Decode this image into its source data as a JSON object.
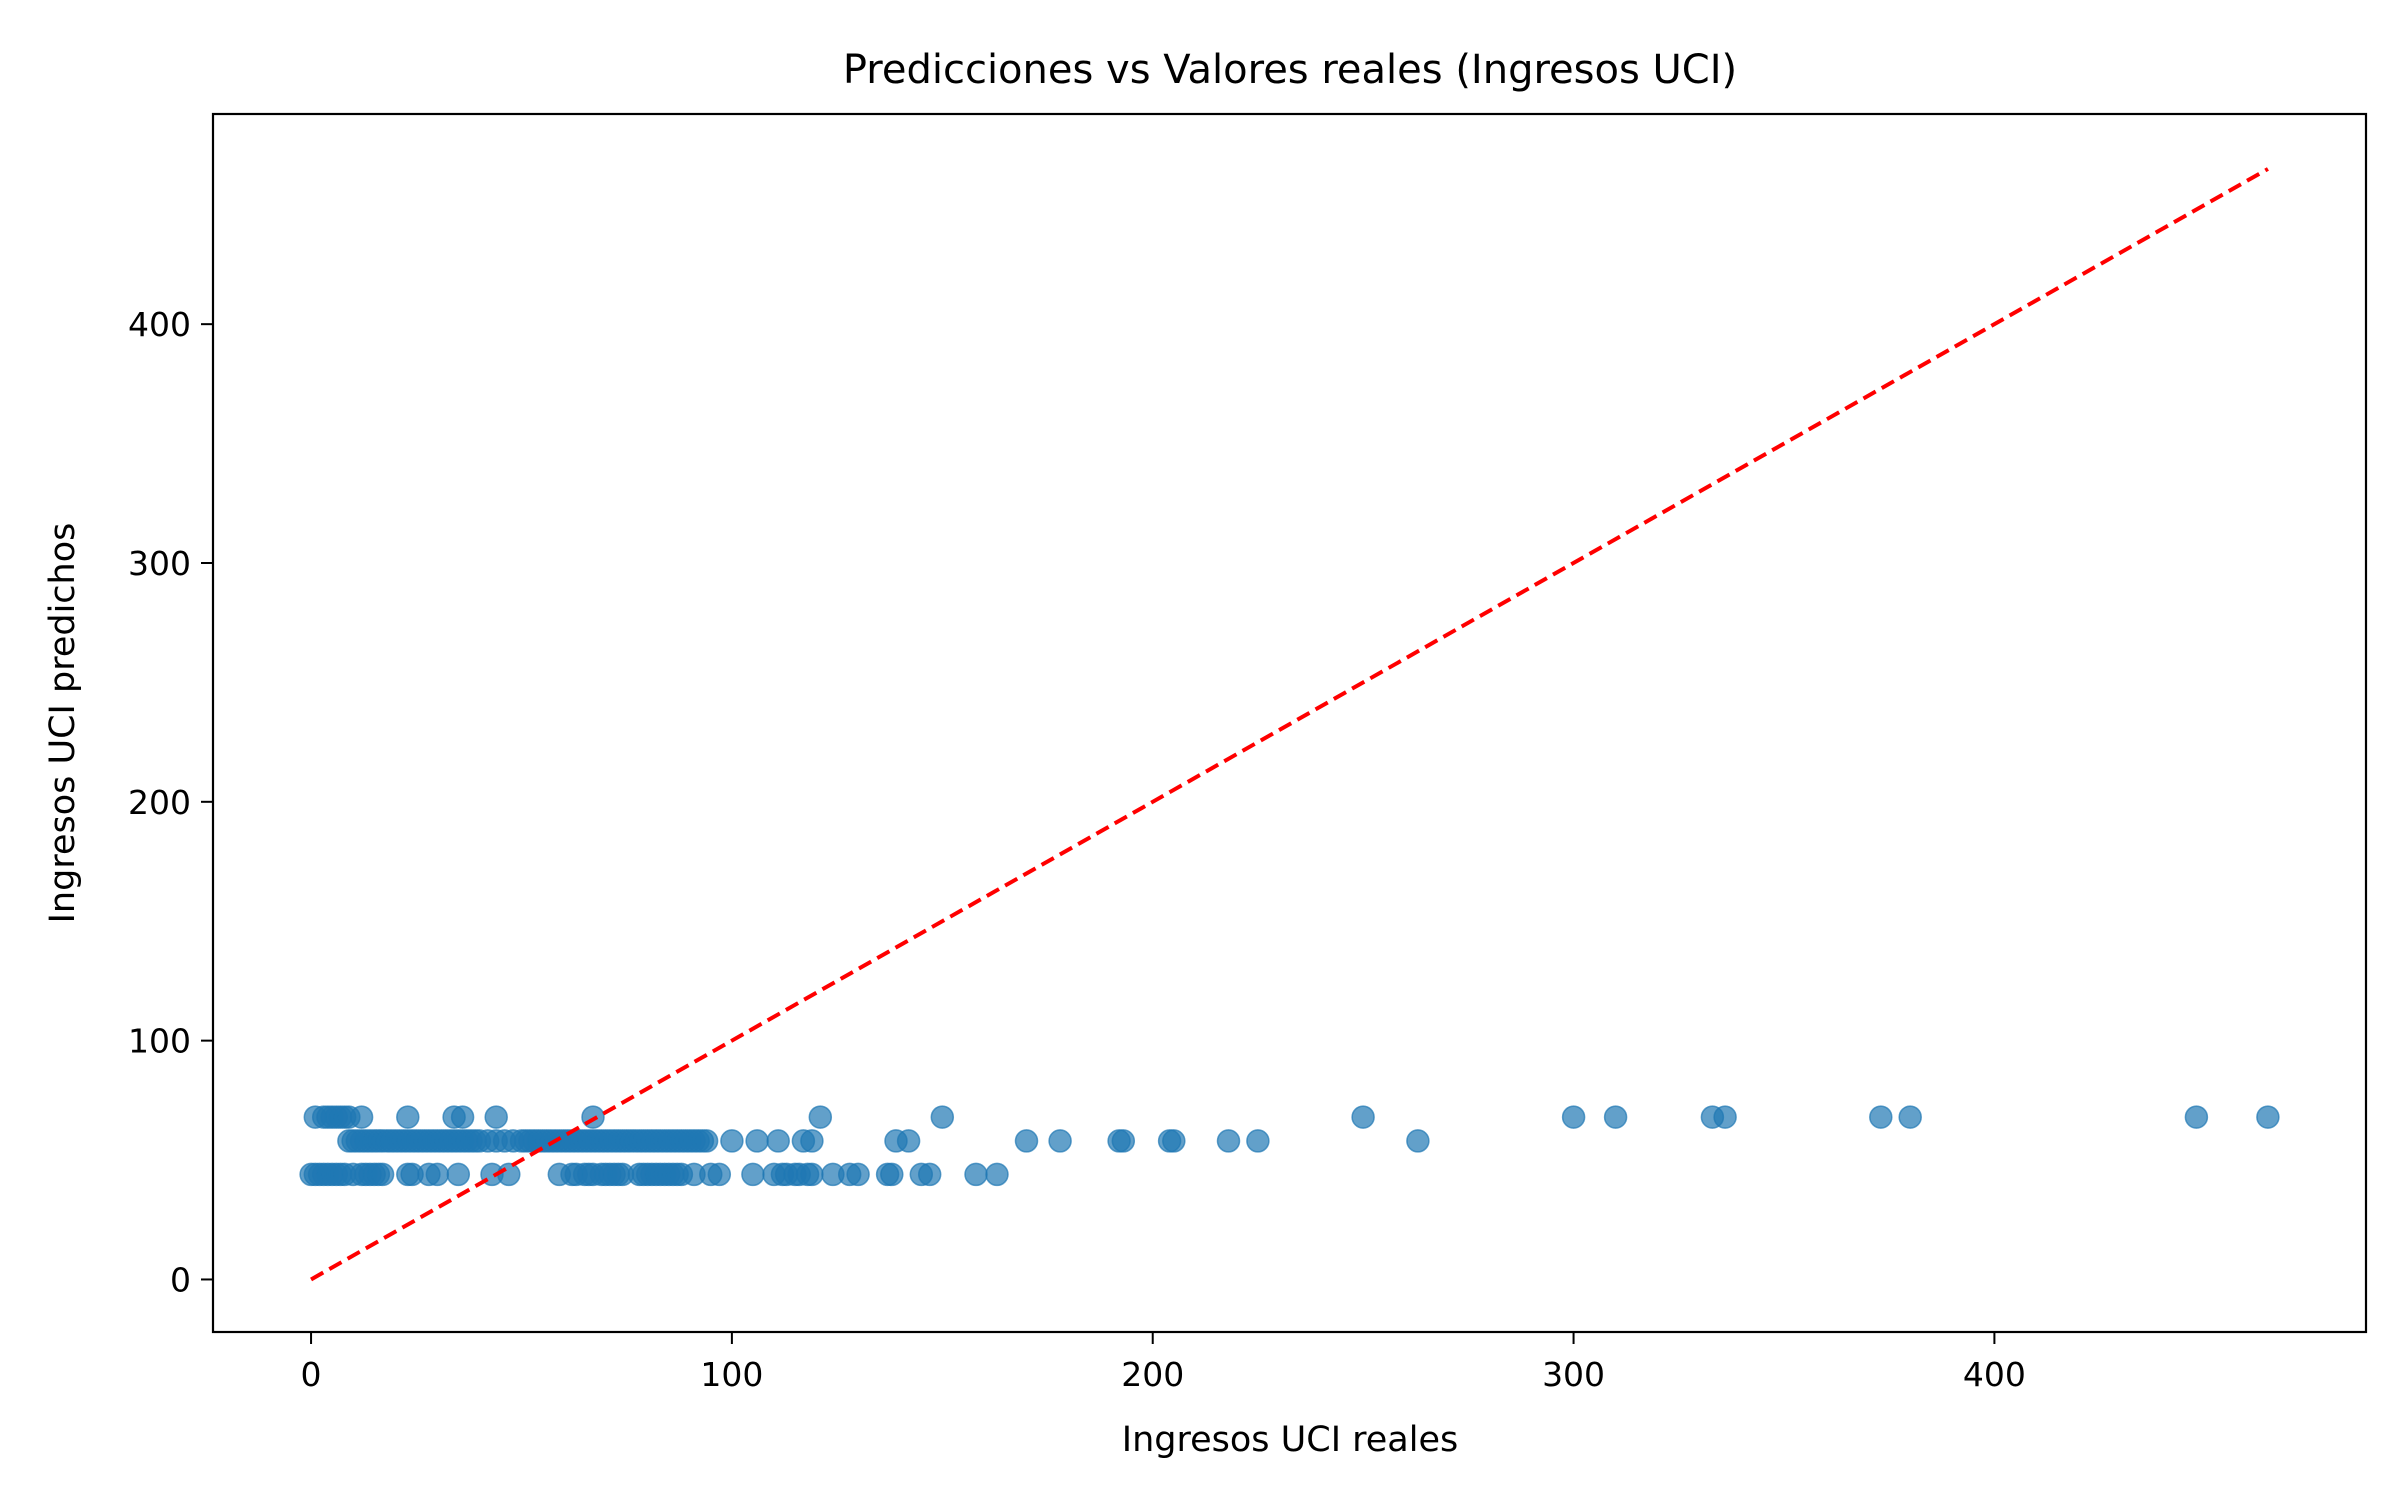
{
  "chart_data": {
    "type": "scatter",
    "title": "Predicciones vs Valores reales (Ingresos UCI)",
    "xlabel": "Ingresos UCI reales",
    "ylabel": "Ingresos UCI predichos",
    "xlim": [
      -23.3,
      488.3
    ],
    "ylim": [
      -22,
      488
    ],
    "xticks": [
      0,
      100,
      200,
      300,
      400
    ],
    "yticks": [
      0,
      100,
      200,
      300,
      400
    ],
    "grid": false,
    "colors": {
      "points": "#1f77b4",
      "reference_line": "#ff0000"
    },
    "reference_line": {
      "style": "dashed",
      "x": [
        0,
        465
      ],
      "y": [
        0,
        465
      ]
    },
    "points": [
      [
        0,
        44
      ],
      [
        1,
        44
      ],
      [
        2,
        44
      ],
      [
        3,
        44
      ],
      [
        4,
        44
      ],
      [
        5,
        44
      ],
      [
        6,
        44
      ],
      [
        7,
        44
      ],
      [
        8,
        44
      ],
      [
        10,
        44
      ],
      [
        12,
        44
      ],
      [
        13,
        44
      ],
      [
        14,
        44
      ],
      [
        15,
        44
      ],
      [
        16,
        44
      ],
      [
        17,
        44
      ],
      [
        23,
        44
      ],
      [
        24,
        44
      ],
      [
        28,
        44
      ],
      [
        30,
        44
      ],
      [
        35,
        44
      ],
      [
        43,
        44
      ],
      [
        47,
        44
      ],
      [
        59,
        44
      ],
      [
        62,
        44
      ],
      [
        63,
        44
      ],
      [
        65,
        44
      ],
      [
        66,
        44
      ],
      [
        67,
        44
      ],
      [
        69,
        44
      ],
      [
        70,
        44
      ],
      [
        71,
        44
      ],
      [
        72,
        44
      ],
      [
        73,
        44
      ],
      [
        74,
        44
      ],
      [
        78,
        44
      ],
      [
        79,
        44
      ],
      [
        80,
        44
      ],
      [
        81,
        44
      ],
      [
        82,
        44
      ],
      [
        83,
        44
      ],
      [
        84,
        44
      ],
      [
        85,
        44
      ],
      [
        86,
        44
      ],
      [
        87,
        44
      ],
      [
        88,
        44
      ],
      [
        91,
        44
      ],
      [
        95,
        44
      ],
      [
        97,
        44
      ],
      [
        105,
        44
      ],
      [
        110,
        44
      ],
      [
        112,
        44
      ],
      [
        113,
        44
      ],
      [
        115,
        44
      ],
      [
        116,
        44
      ],
      [
        118,
        44
      ],
      [
        119,
        44
      ],
      [
        124,
        44
      ],
      [
        128,
        44
      ],
      [
        130,
        44
      ],
      [
        137,
        44
      ],
      [
        138,
        44
      ],
      [
        145,
        44
      ],
      [
        147,
        44
      ],
      [
        158,
        44
      ],
      [
        163,
        44
      ],
      [
        9,
        58
      ],
      [
        10,
        58
      ],
      [
        11,
        58
      ],
      [
        12,
        58
      ],
      [
        13,
        58
      ],
      [
        14,
        58
      ],
      [
        15,
        58
      ],
      [
        16,
        58
      ],
      [
        17,
        58
      ],
      [
        18,
        58
      ],
      [
        19,
        58
      ],
      [
        20,
        58
      ],
      [
        21,
        58
      ],
      [
        22,
        58
      ],
      [
        23,
        58
      ],
      [
        24,
        58
      ],
      [
        25,
        58
      ],
      [
        26,
        58
      ],
      [
        27,
        58
      ],
      [
        28,
        58
      ],
      [
        29,
        58
      ],
      [
        30,
        58
      ],
      [
        31,
        58
      ],
      [
        32,
        58
      ],
      [
        33,
        58
      ],
      [
        34,
        58
      ],
      [
        35,
        58
      ],
      [
        36,
        58
      ],
      [
        37,
        58
      ],
      [
        38,
        58
      ],
      [
        39,
        58
      ],
      [
        40,
        58
      ],
      [
        42,
        58
      ],
      [
        44,
        58
      ],
      [
        46,
        58
      ],
      [
        48,
        58
      ],
      [
        50,
        58
      ],
      [
        51,
        58
      ],
      [
        52,
        58
      ],
      [
        53,
        58
      ],
      [
        54,
        58
      ],
      [
        55,
        58
      ],
      [
        56,
        58
      ],
      [
        57,
        58
      ],
      [
        58,
        58
      ],
      [
        59,
        58
      ],
      [
        60,
        58
      ],
      [
        61,
        58
      ],
      [
        62,
        58
      ],
      [
        63,
        58
      ],
      [
        64,
        58
      ],
      [
        65,
        58
      ],
      [
        66,
        58
      ],
      [
        67,
        58
      ],
      [
        68,
        58
      ],
      [
        69,
        58
      ],
      [
        70,
        58
      ],
      [
        71,
        58
      ],
      [
        72,
        58
      ],
      [
        73,
        58
      ],
      [
        74,
        58
      ],
      [
        75,
        58
      ],
      [
        76,
        58
      ],
      [
        77,
        58
      ],
      [
        78,
        58
      ],
      [
        79,
        58
      ],
      [
        80,
        58
      ],
      [
        81,
        58
      ],
      [
        82,
        58
      ],
      [
        83,
        58
      ],
      [
        84,
        58
      ],
      [
        85,
        58
      ],
      [
        86,
        58
      ],
      [
        87,
        58
      ],
      [
        88,
        58
      ],
      [
        89,
        58
      ],
      [
        90,
        58
      ],
      [
        91,
        58
      ],
      [
        92,
        58
      ],
      [
        93,
        58
      ],
      [
        94,
        58
      ],
      [
        100,
        58
      ],
      [
        106,
        58
      ],
      [
        111,
        58
      ],
      [
        117,
        58
      ],
      [
        119,
        58
      ],
      [
        139,
        58
      ],
      [
        142,
        58
      ],
      [
        170,
        58
      ],
      [
        178,
        58
      ],
      [
        192,
        58
      ],
      [
        193,
        58
      ],
      [
        204,
        58
      ],
      [
        205,
        58
      ],
      [
        218,
        58
      ],
      [
        225,
        58
      ],
      [
        263,
        58
      ],
      [
        1,
        68
      ],
      [
        3,
        68
      ],
      [
        4,
        68
      ],
      [
        5,
        68
      ],
      [
        6,
        68
      ],
      [
        7,
        68
      ],
      [
        8,
        68
      ],
      [
        9,
        68
      ],
      [
        12,
        68
      ],
      [
        23,
        68
      ],
      [
        34,
        68
      ],
      [
        36,
        68
      ],
      [
        44,
        68
      ],
      [
        67,
        68
      ],
      [
        121,
        68
      ],
      [
        150,
        68
      ],
      [
        250,
        68
      ],
      [
        300,
        68
      ],
      [
        310,
        68
      ],
      [
        333,
        68
      ],
      [
        336,
        68
      ],
      [
        373,
        68
      ],
      [
        380,
        68
      ],
      [
        448,
        68
      ],
      [
        465,
        68
      ]
    ]
  }
}
